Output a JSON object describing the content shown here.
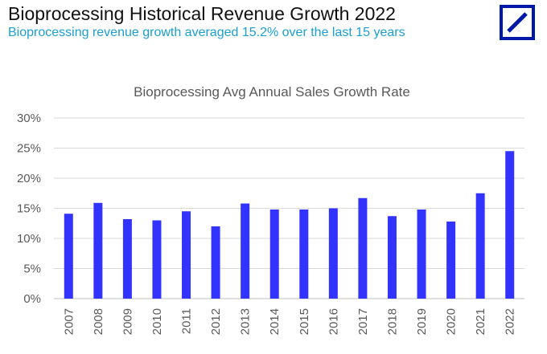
{
  "header": {
    "title": "Bioprocessing Historical Revenue Growth 2022",
    "subtitle": "Bioprocessing revenue growth averaged 15.2% over the last 15 years",
    "logo_icon": "deutsche-bank-logo",
    "title_color": "#111111",
    "subtitle_color": "#1a9fd0",
    "logo_color": "#0018a8"
  },
  "chart_data": {
    "type": "bar",
    "title": "Bioprocessing Avg Annual Sales Growth Rate",
    "xlabel": "",
    "ylabel": "",
    "categories": [
      "2007",
      "2008",
      "2009",
      "2010",
      "2011",
      "2012",
      "2013",
      "2014",
      "2015",
      "2016",
      "2017",
      "2018",
      "2019",
      "2020",
      "2021",
      "2022"
    ],
    "values": [
      14.1,
      15.9,
      13.2,
      13.0,
      14.5,
      12.0,
      15.8,
      14.8,
      14.8,
      15.0,
      16.7,
      13.7,
      14.8,
      12.8,
      17.5,
      24.5
    ],
    "value_unit": "%",
    "ylim": [
      0,
      30
    ],
    "yticks": [
      "0%",
      "5%",
      "10%",
      "15%",
      "20%",
      "25%",
      "30%"
    ],
    "grid": "horizontal",
    "legend": "none",
    "bar_color": "#3333ff"
  }
}
